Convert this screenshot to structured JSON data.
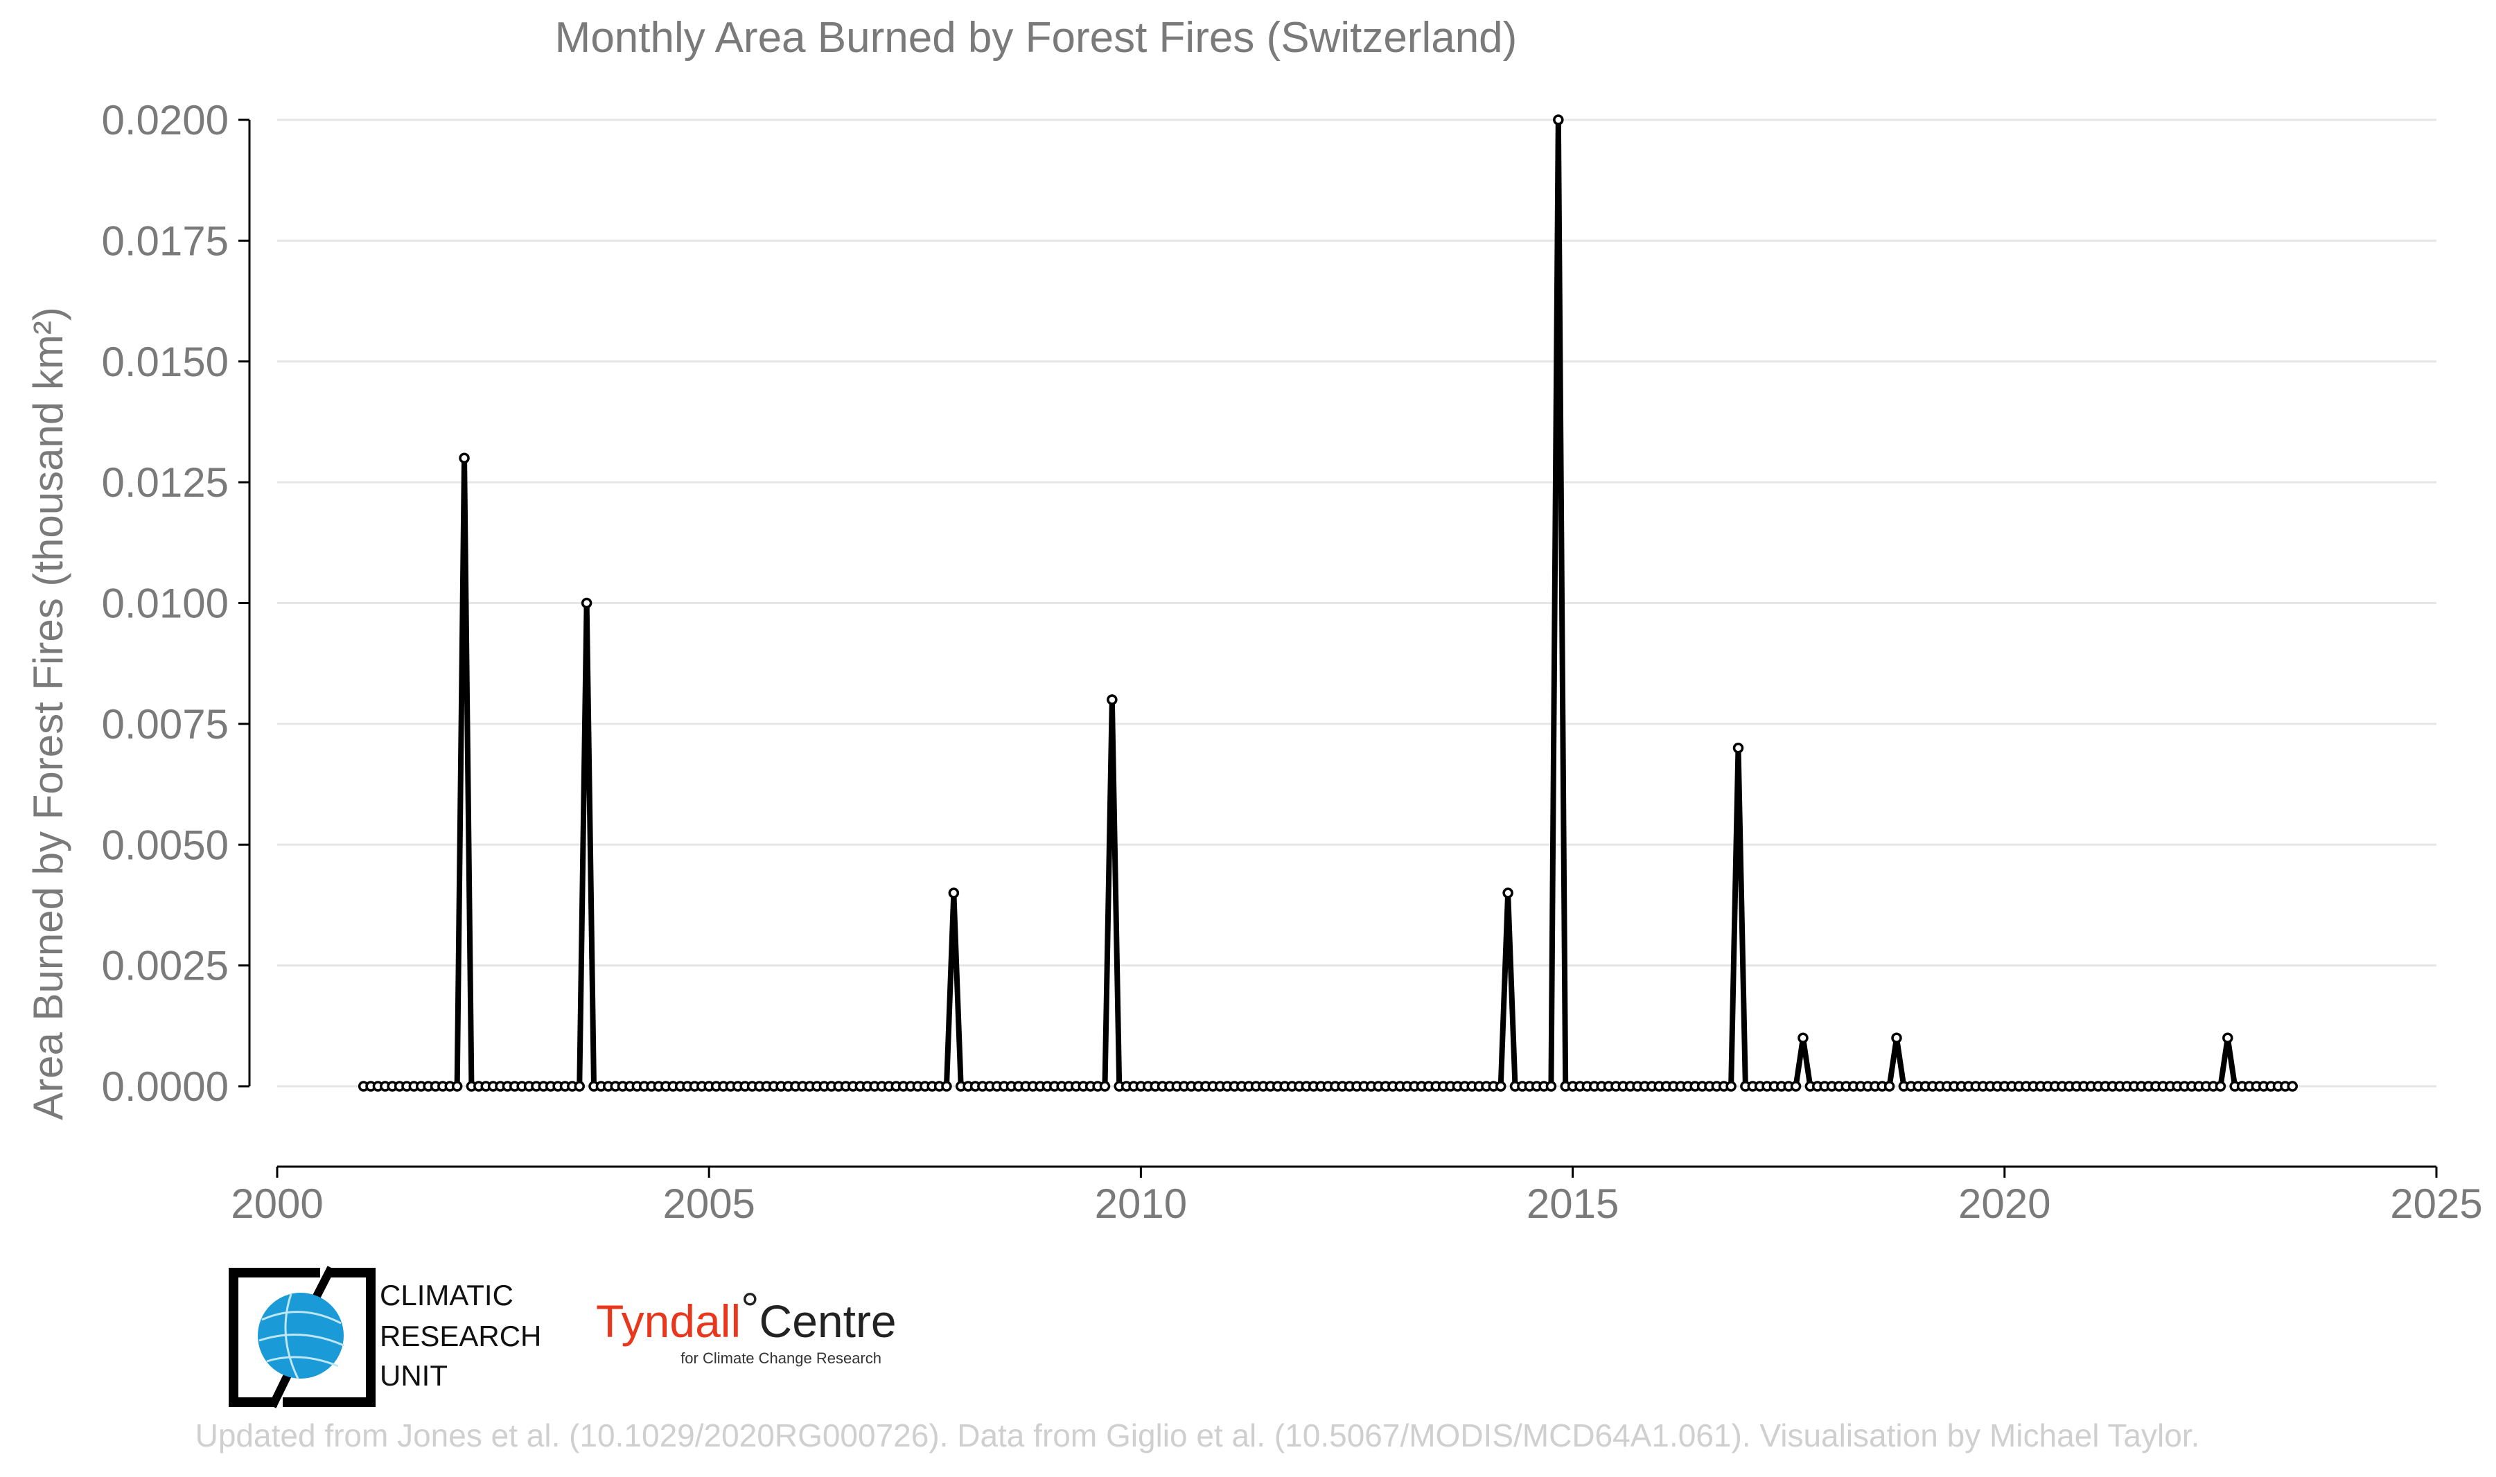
{
  "chart_data": {
    "type": "line",
    "title": "Monthly Area Burned by Forest Fires (Switzerland)",
    "xlabel": "",
    "ylabel": "Area Burned by Forest Fires (thousand km²)",
    "xlim": [
      2000,
      2025
    ],
    "ylim": [
      0,
      0.02
    ],
    "x_ticks": [
      "2000",
      "2005",
      "2010",
      "2015",
      "2020",
      "2025"
    ],
    "y_ticks": [
      "0.0000",
      "0.0025",
      "0.0050",
      "0.0075",
      "0.0100",
      "0.0125",
      "0.0150",
      "0.0175",
      "0.0200"
    ],
    "grid": "horizontal",
    "start": "2001-01",
    "end": "2023-05",
    "baseline_value": 0,
    "series": [
      {
        "color": "#000000",
        "nonzero_points": [
          {
            "month": "2002-03",
            "value": 0.013
          },
          {
            "month": "2003-08",
            "value": 0.01
          },
          {
            "month": "2007-11",
            "value": 0.004
          },
          {
            "month": "2009-09",
            "value": 0.008
          },
          {
            "month": "2014-04",
            "value": 0.004
          },
          {
            "month": "2014-11",
            "value": 0.02
          },
          {
            "month": "2016-12",
            "value": 0.007
          },
          {
            "month": "2017-09",
            "value": 0.001
          },
          {
            "month": "2018-10",
            "value": 0.001
          },
          {
            "month": "2022-08",
            "value": 0.001
          }
        ]
      }
    ]
  },
  "logos": {
    "cru": {
      "line1": "CLIMATIC",
      "line2": "RESEARCH",
      "line3": "UNIT",
      "color": "#1a9ad6"
    },
    "tyndall": {
      "name": "Tyndall",
      "degree": "°",
      "centre": "Centre",
      "sub": "for Climate Change Research",
      "color": "#e8371c"
    }
  },
  "credit": "Updated from Jones et al. (10.1029/2020RG000726). Data from Giglio et al. (10.5067/MODIS/MCD64A1.061). Visualisation by Michael Taylor."
}
